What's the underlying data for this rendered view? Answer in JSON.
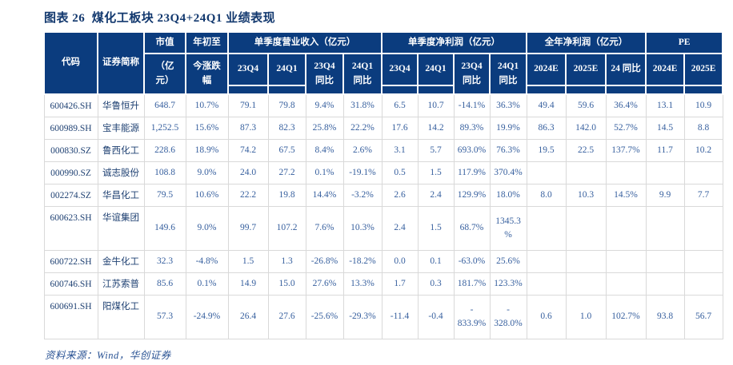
{
  "page": {
    "title": "图表 26  煤化工板块 23Q4+24Q1 业绩表现",
    "source": "资料来源：Wind，华创证券"
  },
  "colors": {
    "header_bg": "#0b3c7e",
    "header_text": "#ffffff",
    "title_text": "#12386e",
    "code_text": "#1e4072",
    "value_text": "#365f9e",
    "source_text": "#2a5394",
    "grid_line": "#d9d9d9"
  },
  "table": {
    "header": {
      "merged": [
        "代码",
        "证券简称"
      ],
      "split": [
        {
          "top": "市值",
          "bottom": "（亿\n元）"
        },
        {
          "top": "年初至",
          "bottom": "今涨跌\n幅"
        }
      ],
      "groups": [
        {
          "label": "单季度营业收入（亿元）",
          "span": 4
        },
        {
          "label": "单季度净利润（亿元）",
          "span": 4
        },
        {
          "label": "全年净利润（亿元）",
          "span": 3
        },
        {
          "label": "PE",
          "span": 2
        }
      ],
      "sub": [
        "23Q4",
        "24Q1",
        "23Q4\n同比",
        "24Q1\n同比",
        "23Q4",
        "24Q1",
        "23Q4\n同比",
        "24Q1\n同比",
        "2024E",
        "2025E",
        "24 同比",
        "2024E",
        "2025E"
      ]
    },
    "rows": [
      {
        "cells": [
          "600426.SH",
          "华鲁恒升",
          "648.7",
          "10.7%",
          "79.1",
          "79.8",
          "9.4%",
          "31.8%",
          "6.5",
          "10.7",
          "-14.1%",
          "36.3%",
          "49.4",
          "59.6",
          "36.4%",
          "13.1",
          "10.9"
        ],
        "tall": false
      },
      {
        "cells": [
          "600989.SH",
          "宝丰能源",
          "1,252.5",
          "15.6%",
          "87.3",
          "82.3",
          "25.8%",
          "22.2%",
          "17.6",
          "14.2",
          "89.3%",
          "19.9%",
          "86.3",
          "142.0",
          "52.7%",
          "14.5",
          "8.8"
        ],
        "tall": false
      },
      {
        "cells": [
          "000830.SZ",
          "鲁西化工",
          "228.6",
          "18.9%",
          "74.2",
          "67.5",
          "8.4%",
          "2.6%",
          "3.1",
          "5.7",
          "693.0%",
          "76.3%",
          "19.5",
          "22.5",
          "137.7%",
          "11.7",
          "10.2"
        ],
        "tall": false
      },
      {
        "cells": [
          "000990.SZ",
          "诚志股份",
          "108.8",
          "9.0%",
          "24.0",
          "27.2",
          "0.1%",
          "-19.1%",
          "0.5",
          "1.5",
          "117.9%",
          "370.4%",
          "",
          "",
          "",
          "",
          ""
        ],
        "tall": false
      },
      {
        "cells": [
          "002274.SZ",
          "华昌化工",
          "79.5",
          "10.6%",
          "22.2",
          "19.8",
          "14.4%",
          "-3.2%",
          "2.6",
          "2.4",
          "129.9%",
          "18.0%",
          "8.0",
          "10.3",
          "14.5%",
          "9.9",
          "7.7"
        ],
        "tall": false
      },
      {
        "cells": [
          "600623.SH",
          "华谊集团",
          "149.6",
          "9.0%",
          "99.7",
          "107.2",
          "7.6%",
          "10.3%",
          "2.4",
          "1.5",
          "68.7%",
          "1345.3\n%",
          "",
          "",
          "",
          "",
          ""
        ],
        "tall": true
      },
      {
        "cells": [
          "600722.SH",
          "金牛化工",
          "32.3",
          "-4.8%",
          "1.5",
          "1.3",
          "-26.8%",
          "-18.2%",
          "0.0",
          "0.1",
          "-63.0%",
          "25.6%",
          "",
          "",
          "",
          "",
          ""
        ],
        "tall": false
      },
      {
        "cells": [
          "600746.SH",
          "江苏索普",
          "85.6",
          "0.1%",
          "14.9",
          "15.0",
          "27.6%",
          "13.3%",
          "1.7",
          "0.3",
          "181.7%",
          "123.3%",
          "",
          "",
          "",
          "",
          ""
        ],
        "tall": false
      },
      {
        "cells": [
          "600691.SH",
          "阳煤化工",
          "57.3",
          "-24.9%",
          "26.4",
          "27.6",
          "-25.6%",
          "-29.3%",
          "-11.4",
          "-0.4",
          "-\n833.9%",
          "-\n328.0%",
          "0.6",
          "1.0",
          "102.7%",
          "93.8",
          "56.7"
        ],
        "tall": true
      }
    ]
  }
}
